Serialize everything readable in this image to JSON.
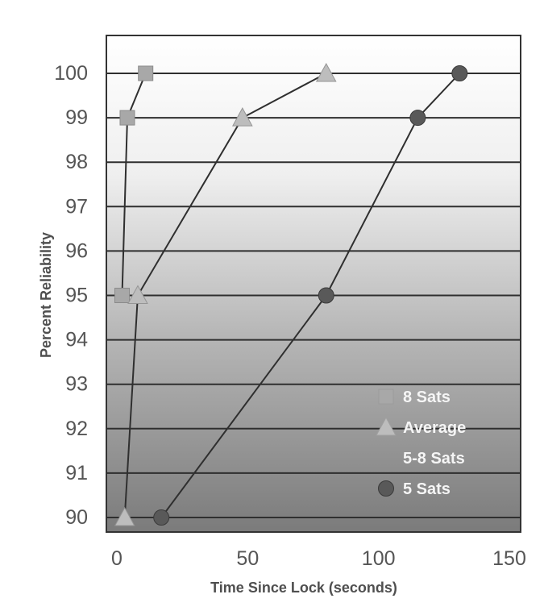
{
  "chart_data": {
    "type": "line",
    "title": "",
    "xlabel": "Time Since Lock (seconds)",
    "ylabel": "Percent Reliability",
    "xlim": [
      0,
      150
    ],
    "ylim": [
      90,
      100
    ],
    "xticks": [
      "0",
      "50",
      "100",
      "150"
    ],
    "yticks": [
      "90",
      "91",
      "92",
      "93",
      "94",
      "95",
      "96",
      "97",
      "98",
      "99",
      "100"
    ],
    "grid": "horizontal",
    "legend_position": "bottom-right",
    "series": [
      {
        "name": "8 Sats",
        "marker": "square",
        "color": "#a8a8a8",
        "points": [
          {
            "x": 2,
            "y": 95
          },
          {
            "x": 4,
            "y": 99
          },
          {
            "x": 11,
            "y": 100
          }
        ]
      },
      {
        "name": "Average 5-8 Sats",
        "name_lines": [
          "Average",
          "5-8 Sats"
        ],
        "marker": "triangle",
        "color": "#bdbdbd",
        "points": [
          {
            "x": 3,
            "y": 90
          },
          {
            "x": 8,
            "y": 95
          },
          {
            "x": 48,
            "y": 99
          },
          {
            "x": 80,
            "y": 100
          }
        ]
      },
      {
        "name": "5 Sats",
        "marker": "circle",
        "color": "#595959",
        "points": [
          {
            "x": 17,
            "y": 90
          },
          {
            "x": 80,
            "y": 95
          },
          {
            "x": 115,
            "y": 99
          },
          {
            "x": 131,
            "y": 100
          }
        ]
      }
    ]
  }
}
